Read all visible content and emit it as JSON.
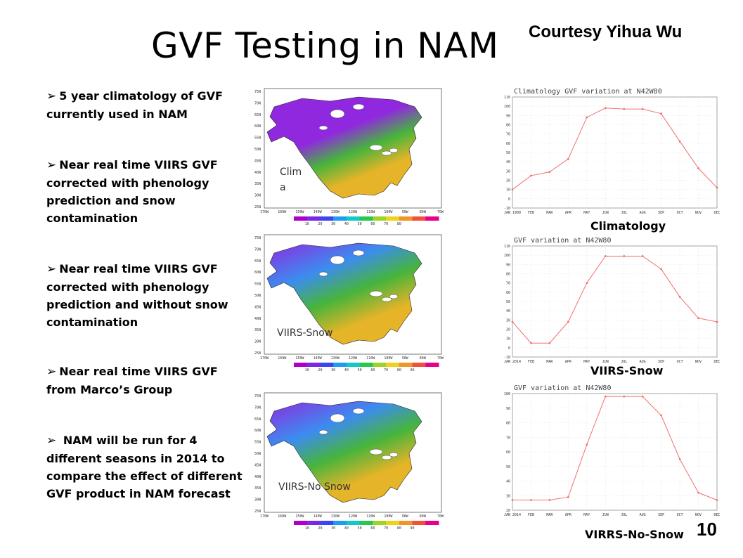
{
  "slide": {
    "title": "GVF Testing in NAM",
    "courtesy": "Courtesy Yihua Wu",
    "page_number": "10"
  },
  "bullets": [
    {
      "icon": "arrow-bullet-icon",
      "text": "5 year climatology of GVF currently used in NAM"
    },
    {
      "icon": "arrow-bullet-icon",
      "text": "Near real time VIIRS GVF corrected with phenology prediction and snow contamination"
    },
    {
      "icon": "arrow-bullet-icon",
      "text": "Near real time VIIRS GVF corrected with phenology prediction and without snow contamination"
    },
    {
      "icon": "arrow-bullet-icon",
      "text": "Near real time VIIRS GVF from Marco’s Group"
    },
    {
      "icon": "arrow-bullet-icon",
      "text": " NAM will be run for 4 different seasons in 2014 to compare the effect of different GVF product  in NAM forecast"
    }
  ],
  "maps": [
    {
      "label_line1": "Clim",
      "label_line2": "a",
      "lat_ticks": [
        "75N",
        "70N",
        "65N",
        "60N",
        "55N",
        "50N",
        "45N",
        "40N",
        "35N",
        "30N",
        "25N"
      ],
      "lon_ticks": [
        "170W",
        "160W",
        "150W",
        "140W",
        "130W",
        "120W",
        "110W",
        "100W",
        "90W",
        "80W",
        "70W"
      ],
      "colorbar_ticks": [
        "10",
        "20",
        "30",
        "40",
        "50",
        "60",
        "70",
        "80"
      ]
    },
    {
      "label": "VIIRS-Snow",
      "lat_ticks": [
        "75N",
        "70N",
        "65N",
        "60N",
        "55N",
        "50N",
        "45N",
        "40N",
        "35N",
        "30N",
        "25N"
      ],
      "lon_ticks": [
        "170W",
        "160W",
        "150W",
        "140W",
        "130W",
        "120W",
        "110W",
        "100W",
        "90W",
        "80W",
        "70W"
      ],
      "colorbar_ticks": [
        "10",
        "20",
        "30",
        "40",
        "50",
        "60",
        "70",
        "80",
        "90"
      ]
    },
    {
      "label": "VIIRS-No Snow",
      "lat_ticks": [
        "75N",
        "70N",
        "65N",
        "60N",
        "55N",
        "50N",
        "45N",
        "40N",
        "35N",
        "30N",
        "25N"
      ],
      "lon_ticks": [
        "170W",
        "160W",
        "150W",
        "140W",
        "130W",
        "120W",
        "110W",
        "100W",
        "90W",
        "80W",
        "70W"
      ],
      "colorbar_ticks": [
        "10",
        "20",
        "30",
        "40",
        "50",
        "60",
        "70",
        "80",
        "90"
      ]
    }
  ],
  "colorbar_colors": [
    "#b000c8",
    "#7a28e6",
    "#3c46f0",
    "#1e9cf0",
    "#14c8c8",
    "#28c850",
    "#a0d228",
    "#f0d21e",
    "#f09628",
    "#f0503c",
    "#e6008c"
  ],
  "map_colors": {
    "low": "#9028e0",
    "mid": "#3c8cf0",
    "high": "#e6b428",
    "water": "#ffffff",
    "land_green": "#46b43c"
  },
  "series_color": "#f07070",
  "chart_data": [
    {
      "type": "line",
      "title": "Climatology GVF variation at N42W80",
      "caption": "Climatology",
      "x": [
        "JAN 1900",
        "FEB",
        "MAR",
        "APR",
        "MAY",
        "JUN",
        "JUL",
        "AUG",
        "SEP",
        "OCT",
        "NOV",
        "DEC"
      ],
      "ylim": [
        -10,
        110
      ],
      "yticks": [
        -10,
        0,
        10,
        20,
        30,
        40,
        50,
        60,
        70,
        80,
        90,
        100,
        110
      ],
      "series": [
        {
          "values": [
            10,
            25,
            29,
            43,
            88,
            98,
            97,
            97,
            92,
            62,
            33,
            12
          ]
        }
      ]
    },
    {
      "type": "line",
      "title": "GVF variation at N42W80",
      "caption": "VIIRS-Snow",
      "x": [
        "JAN 2014",
        "FEB",
        "MAR",
        "APR",
        "MAY",
        "JUN",
        "JUL",
        "AUG",
        "SEP",
        "OCT",
        "NOV",
        "DEC"
      ],
      "ylim": [
        -10,
        110
      ],
      "yticks": [
        -10,
        0,
        10,
        20,
        30,
        40,
        50,
        60,
        70,
        80,
        90,
        100,
        110
      ],
      "series": [
        {
          "values": [
            28,
            5,
            5,
            28,
            70,
            99,
            99,
            99,
            85,
            55,
            32,
            28
          ]
        }
      ]
    },
    {
      "type": "line",
      "title": "GVF variation at N42W80",
      "caption": "VIRRS-No-Snow",
      "x": [
        "JAN 2014",
        "FEB",
        "MAR",
        "APR",
        "MAY",
        "JUN",
        "JUL",
        "AUG",
        "SEP",
        "OCT",
        "NOV",
        "DEC"
      ],
      "ylim": [
        20,
        100
      ],
      "yticks": [
        20,
        30,
        40,
        50,
        60,
        70,
        80,
        90,
        100
      ],
      "series": [
        {
          "values": [
            27,
            27,
            27,
            29,
            65,
            98,
            98,
            98,
            85,
            55,
            32,
            27
          ]
        }
      ]
    }
  ]
}
